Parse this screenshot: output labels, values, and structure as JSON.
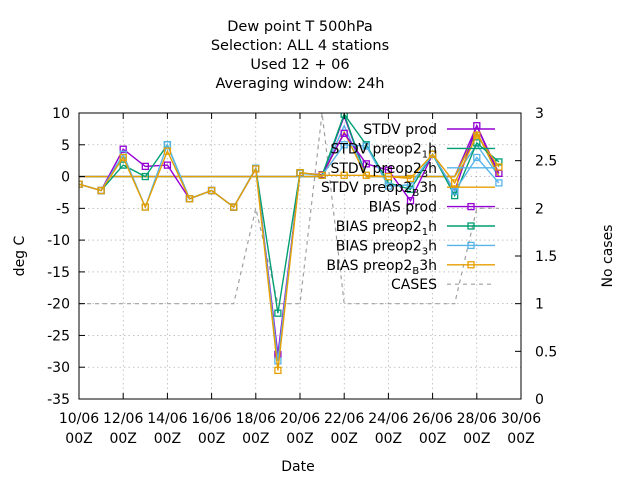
{
  "chart_data": {
    "type": "line",
    "title_lines": [
      "Dew point T 500hPa",
      "Selection: ALL      4 stations",
      "Used  12 + 06",
      "Averaging window: 24h"
    ],
    "xlabel": "Date",
    "ylabel": "deg C",
    "y2label": "No cases",
    "ylim": [
      -35,
      10
    ],
    "y2lim": [
      0,
      3
    ],
    "yticks": [
      10,
      5,
      0,
      -5,
      -10,
      -15,
      -20,
      -25,
      -30,
      -35
    ],
    "y2ticks": [
      "3",
      "2.5",
      "2",
      "1.5",
      "1",
      "0.5",
      "0"
    ],
    "xticks": [
      {
        "day": 10,
        "top": "10/06",
        "bottom": "00Z"
      },
      {
        "day": 12,
        "top": "12/06",
        "bottom": "00Z"
      },
      {
        "day": 14,
        "top": "14/06",
        "bottom": "00Z"
      },
      {
        "day": 16,
        "top": "16/06",
        "bottom": "00Z"
      },
      {
        "day": 18,
        "top": "18/06",
        "bottom": "00Z"
      },
      {
        "day": 20,
        "top": "20/06",
        "bottom": "00Z"
      },
      {
        "day": 22,
        "top": "22/06",
        "bottom": "00Z"
      },
      {
        "day": 24,
        "top": "24/06",
        "bottom": "00Z"
      },
      {
        "day": 26,
        "top": "26/06",
        "bottom": "00Z"
      },
      {
        "day": 28,
        "top": "28/06",
        "bottom": "00Z"
      },
      {
        "day": 30,
        "top": "30/06",
        "bottom": "00Z"
      }
    ],
    "xlim": [
      10,
      30
    ],
    "grid": true,
    "legend_position": "top-right",
    "x": [
      10,
      11,
      12,
      13,
      14,
      15,
      16,
      17,
      18,
      19,
      20,
      21,
      22,
      23,
      24,
      25,
      26,
      27,
      28,
      29
    ],
    "series": [
      {
        "legend": "STDV prod",
        "legend_sub": "",
        "legend_after": "",
        "color": "#9400d3",
        "marker": "none",
        "axis": "y",
        "values": [
          0,
          0,
          0,
          0,
          0,
          0,
          0,
          0,
          0,
          0,
          0,
          0,
          9.5,
          0,
          0,
          0,
          0,
          0,
          8,
          0
        ]
      },
      {
        "legend": "STDV preop2",
        "legend_sub": "1",
        "legend_after": "h",
        "color": "#009e73",
        "marker": "none",
        "axis": "y",
        "values": [
          0,
          0,
          0,
          0,
          0,
          0,
          0,
          0,
          0,
          0,
          0,
          0,
          9.8,
          0,
          0,
          0,
          0,
          0,
          7,
          0
        ]
      },
      {
        "legend": "STDV preop2",
        "legend_sub": "3",
        "legend_after": "h",
        "color": "#56b4e9",
        "marker": "none",
        "axis": "y",
        "values": [
          0,
          0,
          0,
          0,
          0,
          0,
          0,
          0,
          0,
          0,
          0,
          0,
          8,
          0,
          0,
          0,
          0,
          0,
          5,
          0
        ]
      },
      {
        "legend": "STDV preop2",
        "legend_sub": "B",
        "legend_after": "3h",
        "color": "#e69f00",
        "marker": "none",
        "axis": "y",
        "values": [
          0,
          0,
          0,
          0,
          0,
          0,
          0,
          0,
          0,
          0,
          0,
          0,
          7,
          0,
          0,
          0,
          0,
          0,
          7,
          0
        ]
      },
      {
        "legend": "BIAS prod",
        "legend_sub": "",
        "legend_after": "",
        "color": "#9400d3",
        "marker": "square",
        "axis": "y",
        "values": [
          -1.2,
          -2.2,
          4.3,
          1.6,
          1.8,
          -3.5,
          -2.2,
          -4.8,
          1.2,
          -28,
          0.5,
          0.3,
          6.8,
          2,
          1,
          -3.8,
          3.5,
          -2.3,
          8,
          0.5
        ]
      },
      {
        "legend": "BIAS preop2",
        "legend_sub": "1",
        "legend_after": "h",
        "color": "#009e73",
        "marker": "square",
        "axis": "y",
        "values": [
          -1.2,
          -2.2,
          1.8,
          0,
          5,
          -3.5,
          -2.2,
          -4.8,
          1.3,
          -21.5,
          0.6,
          0.2,
          9.8,
          5,
          -1,
          -2,
          3.5,
          -3,
          5.3,
          2.3
        ]
      },
      {
        "legend": "BIAS preop2",
        "legend_sub": "3",
        "legend_after": "h",
        "color": "#56b4e9",
        "marker": "square",
        "axis": "y",
        "values": [
          -1.2,
          -2.2,
          3.5,
          -4.8,
          5,
          -3.5,
          -2.2,
          -4.8,
          1.3,
          -29,
          0.5,
          0.2,
          5,
          4.8,
          -1.5,
          -1.3,
          3.5,
          -2.3,
          3,
          -1
        ]
      },
      {
        "legend": "BIAS preop2",
        "legend_sub": "B",
        "legend_after": "3h",
        "color": "#e69f00",
        "marker": "square",
        "axis": "y",
        "values": [
          -1.2,
          -2.2,
          3,
          -4.8,
          4,
          -3.5,
          -2.2,
          -4.8,
          1.2,
          -30.5,
          0.6,
          0.2,
          0.2,
          0.2,
          0,
          -0.3,
          3.5,
          -1,
          6.5,
          1.5
        ]
      },
      {
        "legend": "CASES",
        "legend_sub": "",
        "legend_after": "",
        "color": "#a0a0a0",
        "marker": "none",
        "dashed": true,
        "axis": "y2",
        "values": [
          1,
          1,
          1,
          1,
          1,
          1,
          1,
          1,
          2,
          1,
          1,
          3,
          1,
          1,
          1,
          1,
          1,
          1,
          2,
          2
        ]
      }
    ]
  }
}
